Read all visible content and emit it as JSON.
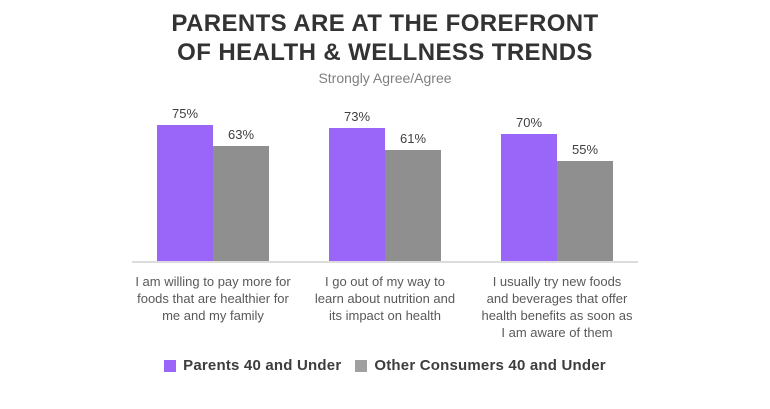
{
  "header": {
    "title_line1": "PARENTS ARE AT THE FOREFRONT",
    "title_line2": "OF HEALTH & WELLNESS TRENDS",
    "subtitle": "Strongly Agree/Agree"
  },
  "chart_data": {
    "type": "bar",
    "title": "PARENTS ARE AT THE FOREFRONT OF HEALTH & WELLNESS TRENDS",
    "subtitle": "Strongly Agree/Agree",
    "unit": "percent",
    "categories": [
      "I am willing to pay more for\nfoods that are healthier for\nme and my family",
      "I go out of my way to\nlearn about nutrition and\nits impact on health",
      "I usually try new foods\nand beverages that offer\nhealth benefits as soon as\nI am aware of them"
    ],
    "series": [
      {
        "name": "Parents 40 and Under",
        "color": "#9a66fa",
        "values": [
          75,
          73,
          70
        ],
        "labels": [
          "75%",
          "73%",
          "70%"
        ]
      },
      {
        "name": "Other Consumers 40 and Under",
        "color": "#8f8f8f",
        "values": [
          63,
          61,
          55
        ],
        "labels": [
          "63%",
          "61%",
          "55%"
        ]
      }
    ],
    "ylim": [
      0,
      85
    ],
    "grid": false,
    "value_axis_hidden": true,
    "legend_position": "bottom"
  },
  "legend": {
    "items": [
      {
        "label": "Parents 40 and Under",
        "color": "#9a66fa"
      },
      {
        "label": "Other Consumers 40 and Under",
        "color": "#a0a0a0"
      }
    ]
  },
  "colors": {
    "background": "#ffffff",
    "title": "#333333",
    "subtitle": "#7f7f7f",
    "value_label": "#404040",
    "category_label": "#595959",
    "axis_line": "#dcdcdc",
    "bar_purple": "#9a66fa",
    "bar_gray": "#8f8f8f"
  }
}
